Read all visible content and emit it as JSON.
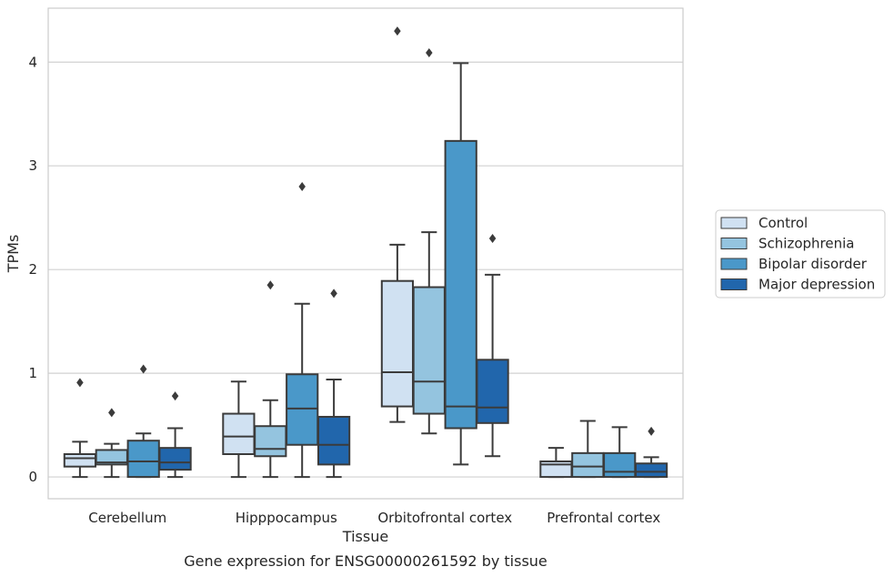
{
  "chart_data": {
    "type": "box",
    "title": "",
    "caption": "Gene expression for ENSG00000261592 by tissue",
    "xlabel": "Tissue",
    "ylabel": "TPMs",
    "ylim": [
      -0.21,
      4.52
    ],
    "yticks": [
      0,
      1,
      2,
      3,
      4
    ],
    "grid": "horizontal",
    "legend_position": "right",
    "categories": [
      "Cerebellum",
      "Hipppocampus",
      "Orbitofrontal cortex",
      "Prefrontal cortex"
    ],
    "series": [
      {
        "name": "Control",
        "color": "#d0e1f2",
        "boxes": [
          {
            "whislo": 0.0,
            "q1": 0.1,
            "med": 0.18,
            "q3": 0.22,
            "whishi": 0.34,
            "fliers": [
              0.91
            ]
          },
          {
            "whislo": 0.0,
            "q1": 0.22,
            "med": 0.39,
            "q3": 0.61,
            "whishi": 0.92,
            "fliers": []
          },
          {
            "whislo": 0.53,
            "q1": 0.68,
            "med": 1.01,
            "q3": 1.89,
            "whishi": 2.24,
            "fliers": [
              4.3
            ]
          },
          {
            "whislo": 0.0,
            "q1": 0.0,
            "med": 0.12,
            "q3": 0.15,
            "whishi": 0.28,
            "fliers": []
          }
        ]
      },
      {
        "name": "Schizophrenia",
        "color": "#94c4df",
        "boxes": [
          {
            "whislo": 0.0,
            "q1": 0.12,
            "med": 0.14,
            "q3": 0.26,
            "whishi": 0.32,
            "fliers": [
              0.62
            ]
          },
          {
            "whislo": 0.0,
            "q1": 0.2,
            "med": 0.27,
            "q3": 0.49,
            "whishi": 0.74,
            "fliers": [
              1.85
            ]
          },
          {
            "whislo": 0.42,
            "q1": 0.61,
            "med": 0.92,
            "q3": 1.83,
            "whishi": 2.36,
            "fliers": [
              4.09
            ]
          },
          {
            "whislo": 0.0,
            "q1": 0.0,
            "med": 0.1,
            "q3": 0.23,
            "whishi": 0.54,
            "fliers": []
          }
        ]
      },
      {
        "name": "Bipolar disorder",
        "color": "#4a98c9",
        "boxes": [
          {
            "whislo": 0.0,
            "q1": 0.0,
            "med": 0.15,
            "q3": 0.35,
            "whishi": 0.42,
            "fliers": [
              1.04
            ]
          },
          {
            "whislo": 0.0,
            "q1": 0.31,
            "med": 0.66,
            "q3": 0.99,
            "whishi": 1.67,
            "fliers": [
              2.8
            ]
          },
          {
            "whislo": 0.12,
            "q1": 0.47,
            "med": 0.68,
            "q3": 3.24,
            "whishi": 3.99,
            "fliers": []
          },
          {
            "whislo": 0.0,
            "q1": 0.0,
            "med": 0.05,
            "q3": 0.23,
            "whishi": 0.48,
            "fliers": []
          }
        ]
      },
      {
        "name": "Major depression",
        "color": "#2166ac",
        "boxes": [
          {
            "whislo": 0.0,
            "q1": 0.07,
            "med": 0.14,
            "q3": 0.28,
            "whishi": 0.47,
            "fliers": [
              0.78
            ]
          },
          {
            "whislo": 0.0,
            "q1": 0.12,
            "med": 0.31,
            "q3": 0.58,
            "whishi": 0.94,
            "fliers": [
              1.77
            ]
          },
          {
            "whislo": 0.2,
            "q1": 0.52,
            "med": 0.67,
            "q3": 1.13,
            "whishi": 1.95,
            "fliers": [
              2.3
            ]
          },
          {
            "whislo": 0.0,
            "q1": 0.0,
            "med": 0.05,
            "q3": 0.13,
            "whishi": 0.19,
            "fliers": [
              0.44
            ]
          }
        ]
      }
    ]
  }
}
